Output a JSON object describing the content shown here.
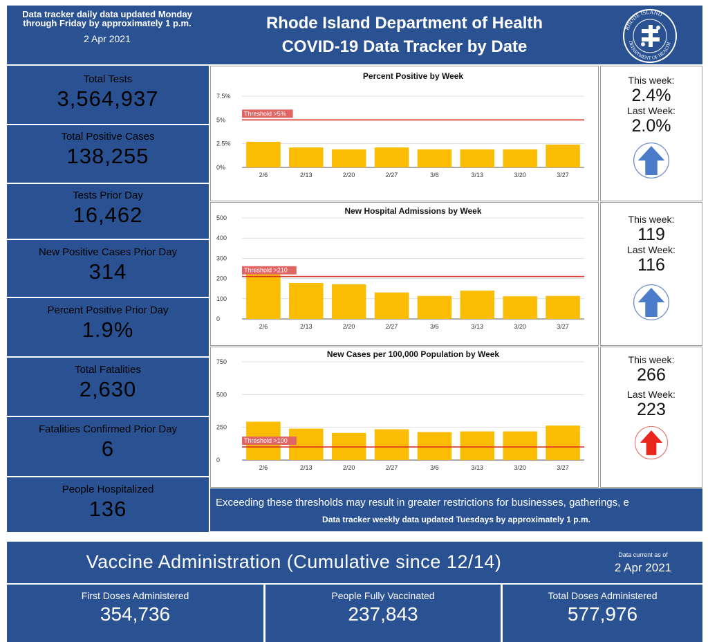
{
  "header": {
    "note": "Data tracker daily data updated Monday through Friday by approximately 1 p.m.",
    "date": "2 Apr 2021",
    "title_line1": "Rhode Island Department of Health",
    "title_line2": "COVID-19 Data Tracker by Date",
    "seal_text": "RHODE ISLAND DEPARTMENT OF HEALTH"
  },
  "stats": [
    {
      "label": "Total Tests",
      "value": "3,564,937"
    },
    {
      "label": "Total Positive Cases",
      "value": "138,255"
    },
    {
      "label": "Tests Prior Day",
      "value": "16,462"
    },
    {
      "label": "New Positive Cases Prior Day",
      "value": "314"
    },
    {
      "label": "Percent Positive Prior Day",
      "value": "1.9%"
    },
    {
      "label": "Total Fatalities",
      "value": "2,630"
    },
    {
      "label": "Fatalities Confirmed Prior Day",
      "value": "6"
    },
    {
      "label": "People Hospitalized",
      "value": "136"
    }
  ],
  "chart_data": [
    {
      "type": "bar",
      "title": "Percent Positive by Week",
      "categories": [
        "2/6",
        "2/13",
        "2/20",
        "2/27",
        "3/6",
        "3/13",
        "3/20",
        "3/27"
      ],
      "values": [
        2.7,
        2.1,
        1.9,
        2.1,
        1.9,
        1.9,
        1.9,
        2.4
      ],
      "ylim": [
        0,
        7.5
      ],
      "yticks": [
        0,
        2.5,
        5,
        7.5
      ],
      "ytick_labels": [
        "0%",
        "2.5%",
        "5%",
        "7.5%"
      ],
      "threshold": 5,
      "threshold_label": "Threshold >5%",
      "bar_color": "#fbbc04",
      "threshold_color": "#d93025"
    },
    {
      "type": "bar",
      "title": "New Hospital Admissions by Week",
      "categories": [
        "2/6",
        "2/13",
        "2/20",
        "2/27",
        "3/6",
        "3/13",
        "3/20",
        "3/27"
      ],
      "values": [
        232,
        178,
        171,
        131,
        114,
        140,
        112,
        114
      ],
      "ylim": [
        0,
        500
      ],
      "yticks": [
        0,
        100,
        200,
        300,
        400,
        500
      ],
      "ytick_labels": [
        "0",
        "100",
        "200",
        "300",
        "400",
        "500"
      ],
      "threshold": 210,
      "threshold_label": "Threshold >210",
      "bar_color": "#fbbc04",
      "threshold_color": "#d93025"
    },
    {
      "type": "bar",
      "title": "New Cases per 100,000 Population by Week",
      "categories": [
        "2/6",
        "2/13",
        "2/20",
        "2/27",
        "3/6",
        "3/13",
        "3/20",
        "3/27"
      ],
      "values": [
        293,
        240,
        207,
        235,
        214,
        219,
        219,
        263
      ],
      "ylim": [
        0,
        750
      ],
      "yticks": [
        0,
        250,
        500,
        750
      ],
      "ytick_labels": [
        "0",
        "250",
        "500",
        "750"
      ],
      "threshold": 100,
      "threshold_label": "Threshold >100",
      "bar_color": "#fbbc04",
      "threshold_color": "#d93025"
    }
  ],
  "weekly": [
    {
      "this_label": "This week:",
      "this_value": "2.4%",
      "last_label": "Last Week:",
      "last_value": "2.0%",
      "trend": "up",
      "arrow_color": "#4a7cc9",
      "ring_color": "#6f8fc9"
    },
    {
      "this_label": "This week:",
      "this_value": "119",
      "last_label": "Last Week:",
      "last_value": "116",
      "trend": "up",
      "arrow_color": "#4a7cc9",
      "ring_color": "#6f8fc9"
    },
    {
      "this_label": "This week:",
      "this_value": "266",
      "last_label": "Last Week:",
      "last_value": "223",
      "trend": "up",
      "arrow_color": "#e8261c",
      "ring_color": "#e57a72"
    }
  ],
  "strip": {
    "line1": "Exceeding these thresholds may result in greater restrictions for businesses, gatherings, e",
    "line2": "Data tracker weekly data updated Tuesdays by approximately 1 p.m."
  },
  "vaccine": {
    "title": "Vaccine Administration (Cumulative since 12/14)",
    "current_label": "Data current as of",
    "current_date": "2 Apr 2021",
    "items": [
      {
        "label": "First Doses Administered",
        "value": "354,736"
      },
      {
        "label": "People Fully Vaccinated",
        "value": "237,843"
      },
      {
        "label": "Total Doses Administered",
        "value": "577,976"
      }
    ]
  },
  "colors": {
    "navy": "#2a5293",
    "bar": "#fbbc04",
    "threshold": "#d93025"
  }
}
